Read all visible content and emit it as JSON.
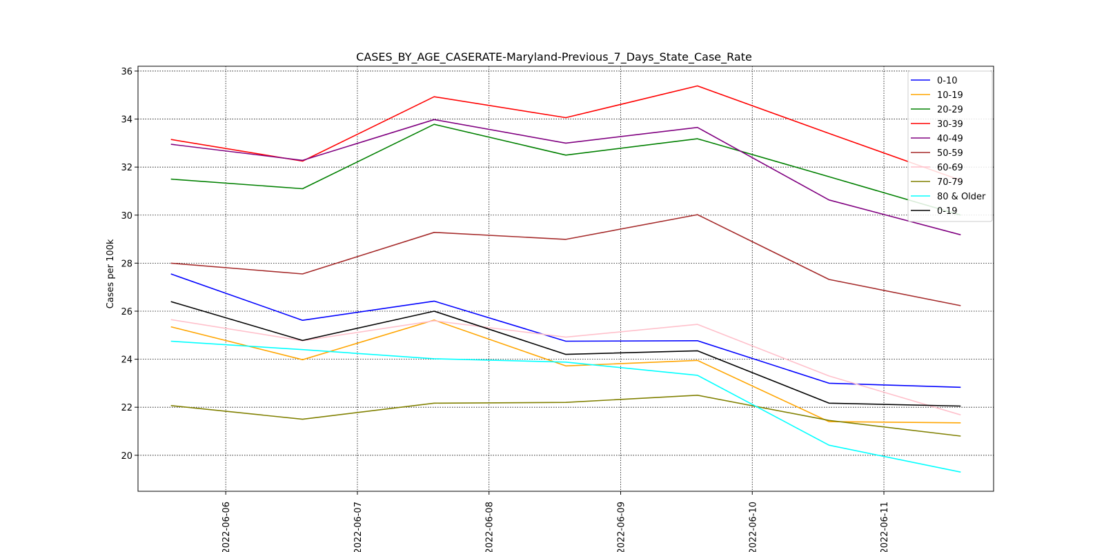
{
  "chart_data": {
    "type": "line",
    "title": "CASES_BY_AGE_CASERATE-Maryland-Previous_7_Days_State_Case_Rate",
    "xlabel": "",
    "ylabel": "Cases per 100k",
    "x": [
      "2022-06-05 14:00",
      "2022-06-06 14:00",
      "2022-06-07 14:00",
      "2022-06-08 14:00",
      "2022-06-09 14:00",
      "2022-06-10 14:00",
      "2022-06-11 14:00"
    ],
    "xlim": [
      "2022-06-05 08:00",
      "2022-06-11 20:00"
    ],
    "xticks": [
      "2022-06-06",
      "2022-06-07",
      "2022-06-08",
      "2022-06-09",
      "2022-06-10",
      "2022-06-11"
    ],
    "ylim": [
      18.5,
      36.2
    ],
    "yticks": [
      20,
      22,
      24,
      26,
      28,
      30,
      32,
      34,
      36
    ],
    "grid": true,
    "grid_style": "dotted",
    "legend_position": "top-right",
    "series": [
      {
        "name": "0-10",
        "color": "#0000ff",
        "values": [
          27.55,
          25.62,
          26.42,
          24.75,
          24.77,
          23.0,
          22.83
        ]
      },
      {
        "name": "10-19",
        "color": "#ffa500",
        "values": [
          25.35,
          23.98,
          25.63,
          23.72,
          23.95,
          21.4,
          21.35
        ]
      },
      {
        "name": "20-29",
        "color": "#008000",
        "values": [
          31.5,
          31.1,
          33.78,
          32.5,
          33.18,
          31.6,
          30.0
        ]
      },
      {
        "name": "30-39",
        "color": "#ff0000",
        "values": [
          33.15,
          32.25,
          34.93,
          34.06,
          35.38,
          33.4,
          31.45
        ]
      },
      {
        "name": "40-49",
        "color": "#800080",
        "values": [
          32.95,
          32.28,
          33.98,
          33.0,
          33.65,
          30.63,
          29.18
        ]
      },
      {
        "name": "50-59",
        "color": "#a52a2a",
        "values": [
          28.0,
          27.55,
          29.28,
          28.99,
          30.02,
          27.32,
          26.23
        ]
      },
      {
        "name": "60-69",
        "color": "#ffc0cb",
        "values": [
          25.65,
          24.77,
          25.6,
          24.92,
          25.45,
          23.3,
          21.68
        ]
      },
      {
        "name": "70-79",
        "color": "#808000",
        "values": [
          22.07,
          21.5,
          22.17,
          22.2,
          22.5,
          21.45,
          20.8
        ]
      },
      {
        "name": "80 & Older",
        "color": "#00ffff",
        "values": [
          24.75,
          24.4,
          24.02,
          23.88,
          23.33,
          20.42,
          19.3
        ]
      },
      {
        "name": "0-19",
        "color": "#000000",
        "values": [
          26.4,
          24.78,
          26.0,
          24.2,
          24.35,
          22.17,
          22.05
        ]
      }
    ]
  }
}
